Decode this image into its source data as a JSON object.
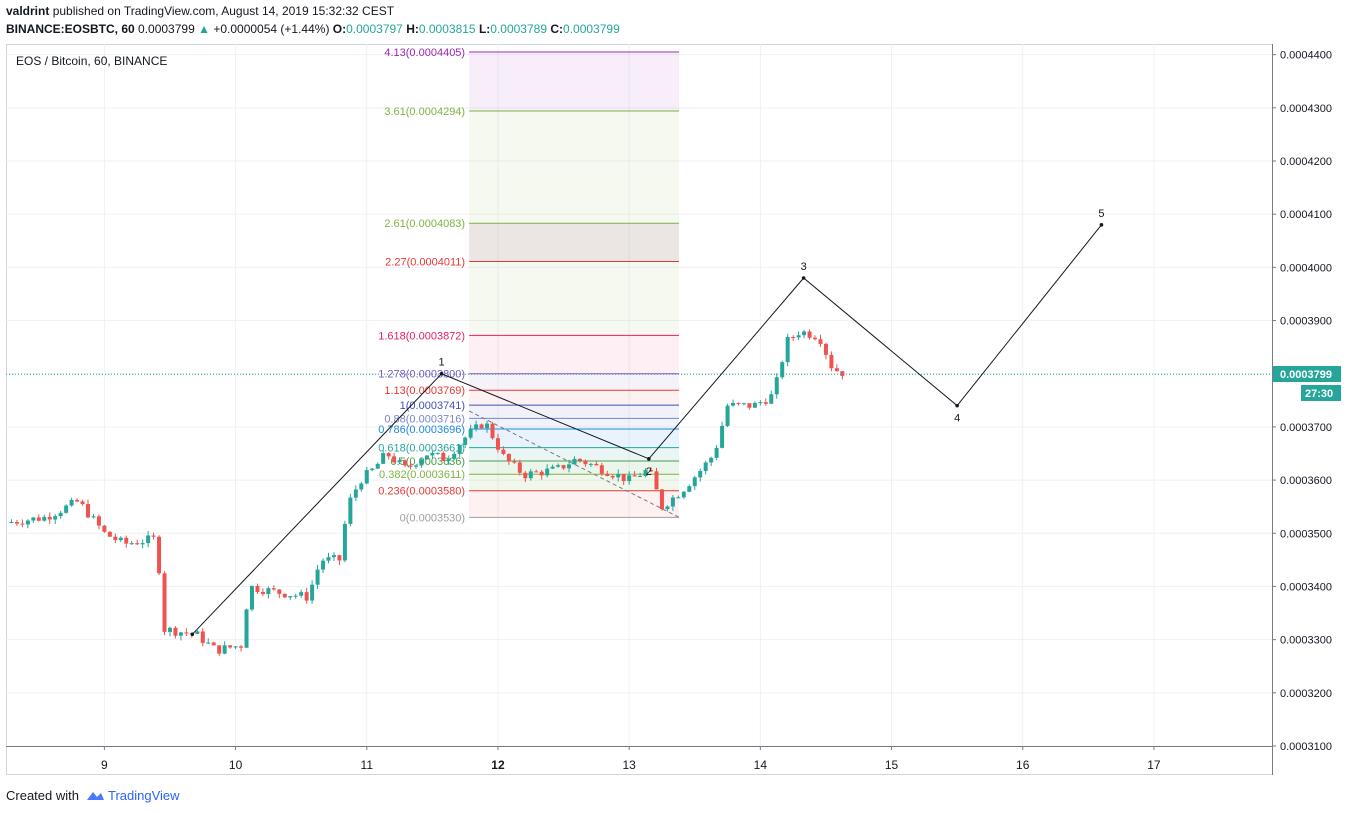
{
  "header": {
    "author": "valdrint",
    "published_text": "published on TradingView.com, August 14, 2019 15:32:32 CEST",
    "symbol_line": "BINANCE:EOSBTC, 60",
    "last": "0.0003799",
    "change_icon": "triangle-up-icon",
    "change": "+0.0000054 (+1.44%)",
    "o_label": "O:",
    "o": "0.0003797",
    "h_label": "H:",
    "h": "0.0003815",
    "l_label": "L:",
    "l": "0.0003789",
    "c_label": "C:",
    "c": "0.0003799"
  },
  "footer": {
    "created_with": "Created with",
    "brand": "TradingView",
    "brand_icon": "tradingview-cloud-icon"
  },
  "colors": {
    "up": "#26a69a",
    "down": "#ef5350",
    "price_line": "#26a69a",
    "brand": "#2962ff"
  },
  "chart_data": {
    "type": "candlestick",
    "title": "EOS / Bitcoin, 60, BINANCE",
    "symbol": "EOSBTC",
    "timeframe": "60",
    "exchange": "BINANCE",
    "x_ticks": [
      "9",
      "10",
      "11",
      "12",
      "13",
      "14",
      "15",
      "16",
      "17"
    ],
    "x_bold_tick": "12",
    "x_range": [
      8.25,
      17.9
    ],
    "y_ticks": [
      "0.0004400",
      "0.0004300",
      "0.0004200",
      "0.0004100",
      "0.0004000",
      "0.0003900",
      "0.0003800",
      "0.0003700",
      "0.0003600",
      "0.0003500",
      "0.0003400",
      "0.0003300",
      "0.0003200",
      "0.0003100"
    ],
    "y_range": [
      0.00031,
      0.000442
    ],
    "grid": true,
    "last_price": "0.0003799",
    "countdown": "27:30",
    "price_path": [
      [
        8.25,
        0.000352
      ],
      [
        8.55,
        0.000353
      ],
      [
        8.8,
        0.000356
      ],
      [
        9.0,
        0.00035
      ],
      [
        9.15,
        0.000348
      ],
      [
        9.4,
        0.000349
      ],
      [
        9.45,
        0.000332
      ],
      [
        9.7,
        0.000331
      ],
      [
        9.85,
        0.000328
      ],
      [
        10.05,
        0.000329
      ],
      [
        10.1,
        0.00034
      ],
      [
        10.3,
        0.000339
      ],
      [
        10.55,
        0.000338
      ],
      [
        10.65,
        0.000345
      ],
      [
        10.8,
        0.000345
      ],
      [
        10.85,
        0.000355
      ],
      [
        10.95,
        0.00036
      ],
      [
        11.05,
        0.000362
      ],
      [
        11.15,
        0.000365
      ],
      [
        11.3,
        0.000362
      ],
      [
        11.45,
        0.000365
      ],
      [
        11.6,
        0.000364
      ],
      [
        11.75,
        0.000368
      ],
      [
        11.9,
        0.000371
      ],
      [
        12.05,
        0.000364
      ],
      [
        12.2,
        0.000361
      ],
      [
        12.45,
        0.000362
      ],
      [
        12.6,
        0.000364
      ],
      [
        12.8,
        0.000362
      ],
      [
        13.0,
        0.00036
      ],
      [
        13.15,
        0.000362
      ],
      [
        13.25,
        0.000355
      ],
      [
        13.4,
        0.000358
      ],
      [
        13.55,
        0.000362
      ],
      [
        13.65,
        0.000365
      ],
      [
        13.75,
        0.000374
      ],
      [
        13.95,
        0.000374
      ],
      [
        14.1,
        0.000376
      ],
      [
        14.2,
        0.000386
      ],
      [
        14.3,
        0.000388
      ],
      [
        14.45,
        0.000387
      ],
      [
        14.55,
        0.000381
      ],
      [
        14.65,
        0.00038
      ]
    ],
    "elliott_wave": [
      {
        "label": "",
        "x": 9.67,
        "y": 0.000331
      },
      {
        "label": "1",
        "x": 11.57,
        "y": 0.00038
      },
      {
        "label": "2",
        "x": 13.15,
        "y": 0.000364
      },
      {
        "label": "3",
        "x": 14.33,
        "y": 0.000398
      },
      {
        "label": "4",
        "x": 15.5,
        "y": 0.000374
      },
      {
        "label": "5",
        "x": 16.6,
        "y": 0.000408
      }
    ],
    "fib_range": {
      "x_start": 11.78,
      "x_end": 13.38,
      "diag_from": [
        11.78,
        0.000373
      ],
      "diag_to": [
        13.38,
        0.000353
      ]
    },
    "fib_levels": [
      {
        "label": "4.13(0.0004405)",
        "value": 0.0004405,
        "color": "#9c27b0"
      },
      {
        "label": "3.61(0.0004294)",
        "value": 0.0004294,
        "color": "#7cb342"
      },
      {
        "label": "2.61(0.0004083)",
        "value": 0.0004083,
        "color": "#7cb342"
      },
      {
        "label": "2.27(0.0004011)",
        "value": 0.0004011,
        "color": "#e53935"
      },
      {
        "label": "1.618(0.0003872)",
        "value": 0.0003872,
        "color": "#e91e63"
      },
      {
        "label": "1.278(0.0003800)",
        "value": 0.00038,
        "color": "#7e57c2"
      },
      {
        "label": "1.13(0.0003769)",
        "value": 0.0003769,
        "color": "#e53935"
      },
      {
        "label": "1(0.0003741)",
        "value": 0.0003741,
        "color": "#3f51b5"
      },
      {
        "label": "0.88(0.0003716)",
        "value": 0.0003716,
        "color": "#7986cb"
      },
      {
        "label": "0.786(0.0003696)",
        "value": 0.0003696,
        "color": "#1e88e5"
      },
      {
        "label": "0.618(0.0003661)",
        "value": 0.0003661,
        "color": "#26a69a"
      },
      {
        "label": "0.5(0.0003636)",
        "value": 0.0003636,
        "color": "#43a047"
      },
      {
        "label": "0.382(0.0003611)",
        "value": 0.0003611,
        "color": "#7cb342"
      },
      {
        "label": "0.236(0.0003580)",
        "value": 0.000358,
        "color": "#e53935"
      },
      {
        "label": "0(0.0003530)",
        "value": 0.000353,
        "color": "#9e9e9e"
      }
    ],
    "fib_fills": [
      {
        "from": 0.0004294,
        "to": 0.0004405,
        "color": "rgba(156,39,176,0.08)"
      },
      {
        "from": 0.0004083,
        "to": 0.0004294,
        "color": "rgba(124,179,66,0.08)"
      },
      {
        "from": 0.0004011,
        "to": 0.0004083,
        "color": "rgba(121,85,72,0.15)"
      },
      {
        "from": 0.0003872,
        "to": 0.0004011,
        "color": "rgba(124,179,66,0.08)"
      },
      {
        "from": 0.00038,
        "to": 0.0003872,
        "color": "rgba(233,30,99,0.07)"
      },
      {
        "from": 0.0003769,
        "to": 0.00038,
        "color": "rgba(126,87,194,0.08)"
      },
      {
        "from": 0.0003741,
        "to": 0.0003769,
        "color": "rgba(229,57,53,0.07)"
      },
      {
        "from": 0.0003716,
        "to": 0.0003741,
        "color": "rgba(63,81,181,0.08)"
      },
      {
        "from": 0.0003696,
        "to": 0.0003716,
        "color": "rgba(121,134,203,0.1)"
      },
      {
        "from": 0.0003661,
        "to": 0.0003696,
        "color": "rgba(30,136,229,0.1)"
      },
      {
        "from": 0.0003636,
        "to": 0.0003661,
        "color": "rgba(38,166,154,0.1)"
      },
      {
        "from": 0.0003611,
        "to": 0.0003636,
        "color": "rgba(67,160,71,0.1)"
      },
      {
        "from": 0.000358,
        "to": 0.0003611,
        "color": "rgba(124,179,66,0.1)"
      },
      {
        "from": 0.000353,
        "to": 0.000358,
        "color": "rgba(229,57,53,0.07)"
      }
    ]
  }
}
